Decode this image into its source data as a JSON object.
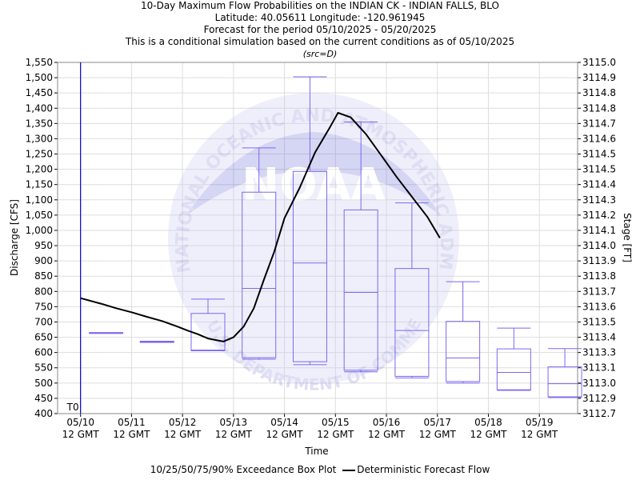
{
  "header": {
    "title_line1": "10-Day Maximum Flow Probabilities on the INDIAN CK - INDIAN FALLS, BLO",
    "title_line2": "Latitude: 40.05611 Longitude: -120.961945",
    "title_line3": "Forecast for the period 05/10/2025 - 05/20/2025",
    "title_line4": "This is a conditional simulation based on the current conditions as of 05/10/2025",
    "source": "(src=D)"
  },
  "watermark": {
    "logo_text": "NOAA",
    "ring_text": "NATIONAL OCEANIC AND ATMOSPHERIC ADMINISTRATION",
    "lower_text": "U.S. DEPARTMENT OF COMMERCE"
  },
  "legend": {
    "box_label": "10/25/50/75/90% Exceedance Box Plot",
    "line_label": "Deterministic Forecast Flow"
  },
  "colors": {
    "box": "#7b68ee",
    "forecast": "#000000",
    "t0_line": "#0000cc",
    "grid": "#dddddd"
  },
  "chart_data": {
    "type": "box",
    "xlabel": "Time",
    "ylabel": "Discharge [CFS]",
    "y2label": "Stage [FT]",
    "ylim": [
      400,
      1550
    ],
    "y_ticks": [
      400,
      450,
      500,
      550,
      600,
      650,
      700,
      750,
      800,
      850,
      900,
      950,
      1000,
      1050,
      1100,
      1150,
      1200,
      1250,
      1300,
      1350,
      1400,
      1450,
      1500,
      1550
    ],
    "y_tick_labels": [
      "400",
      "450",
      "500",
      "550",
      "600",
      "650",
      "700",
      "750",
      "800",
      "850",
      "900",
      "950",
      "1,000",
      "1,050",
      "1,100",
      "1,150",
      "1,200",
      "1,250",
      "1,300",
      "1,350",
      "1,400",
      "1,450",
      "1,500",
      "1,550"
    ],
    "y2_ticks": [
      "3112.7",
      "3112.9",
      "3113.0",
      "3113.1",
      "3113.3",
      "3113.4",
      "3113.5",
      "3113.6",
      "3113.7",
      "3113.8",
      "3113.9",
      "3114.0",
      "3114.1",
      "3114.2",
      "3114.3",
      "3114.4",
      "3114.5",
      "3114.5",
      "3114.6",
      "3114.7",
      "3114.8",
      "3114.8",
      "3114.9",
      "3115.0"
    ],
    "x_range_days": [
      -0.45,
      9.75
    ],
    "x_tick_labels": [
      {
        "date": "05/10",
        "time": "12 GMT"
      },
      {
        "date": "05/11",
        "time": "12 GMT"
      },
      {
        "date": "05/12",
        "time": "12 GMT"
      },
      {
        "date": "05/13",
        "time": "12 GMT"
      },
      {
        "date": "05/14",
        "time": "12 GMT"
      },
      {
        "date": "05/15",
        "time": "12 GMT"
      },
      {
        "date": "05/16",
        "time": "12 GMT"
      },
      {
        "date": "05/17",
        "time": "12 GMT"
      },
      {
        "date": "05/18",
        "time": "12 GMT"
      },
      {
        "date": "05/19",
        "time": "12 GMT"
      }
    ],
    "t0_label": "T0",
    "t0_day": 0,
    "boxes": [
      {
        "day": 0.5,
        "p90": 665,
        "p75": 665,
        "p50": 665,
        "p25": 665,
        "p10": 665
      },
      {
        "day": 1.5,
        "p90": 637,
        "p75": 637,
        "p50": 635,
        "p25": 633,
        "p10": 633
      },
      {
        "day": 2.5,
        "p90": 775,
        "p75": 728,
        "p50": 608,
        "p25": 606,
        "p10": 606
      },
      {
        "day": 3.5,
        "p90": 1270,
        "p75": 1125,
        "p50": 810,
        "p25": 583,
        "p10": 578
      },
      {
        "day": 4.5,
        "p90": 1503,
        "p75": 1193,
        "p50": 893,
        "p25": 570,
        "p10": 560
      },
      {
        "day": 5.5,
        "p90": 1355,
        "p75": 1067,
        "p50": 797,
        "p25": 542,
        "p10": 537
      },
      {
        "day": 6.5,
        "p90": 1090,
        "p75": 875,
        "p50": 672,
        "p25": 522,
        "p10": 517
      },
      {
        "day": 7.5,
        "p90": 832,
        "p75": 702,
        "p50": 582,
        "p25": 505,
        "p10": 500
      },
      {
        "day": 8.5,
        "p90": 680,
        "p75": 612,
        "p50": 535,
        "p25": 478,
        "p10": 476
      },
      {
        "day": 9.5,
        "p90": 613,
        "p75": 553,
        "p50": 498,
        "p25": 455,
        "p10": 453
      }
    ],
    "forecast": {
      "name": "Deterministic Forecast Flow",
      "points": [
        [
          0.0,
          778
        ],
        [
          0.4,
          760
        ],
        [
          0.7,
          745
        ],
        [
          1.0,
          732
        ],
        [
          1.3,
          717
        ],
        [
          1.6,
          703
        ],
        [
          1.9,
          685
        ],
        [
          2.1,
          672
        ],
        [
          2.3,
          660
        ],
        [
          2.5,
          646
        ],
        [
          2.8,
          636
        ],
        [
          3.0,
          650
        ],
        [
          3.2,
          685
        ],
        [
          3.4,
          745
        ],
        [
          3.6,
          840
        ],
        [
          3.8,
          930
        ],
        [
          4.0,
          1040
        ],
        [
          4.3,
          1140
        ],
        [
          4.6,
          1255
        ],
        [
          4.9,
          1340
        ],
        [
          5.05,
          1385
        ],
        [
          5.3,
          1370
        ],
        [
          5.6,
          1315
        ],
        [
          5.9,
          1245
        ],
        [
          6.2,
          1175
        ],
        [
          6.5,
          1110
        ],
        [
          6.8,
          1045
        ],
        [
          7.05,
          975
        ]
      ]
    }
  }
}
